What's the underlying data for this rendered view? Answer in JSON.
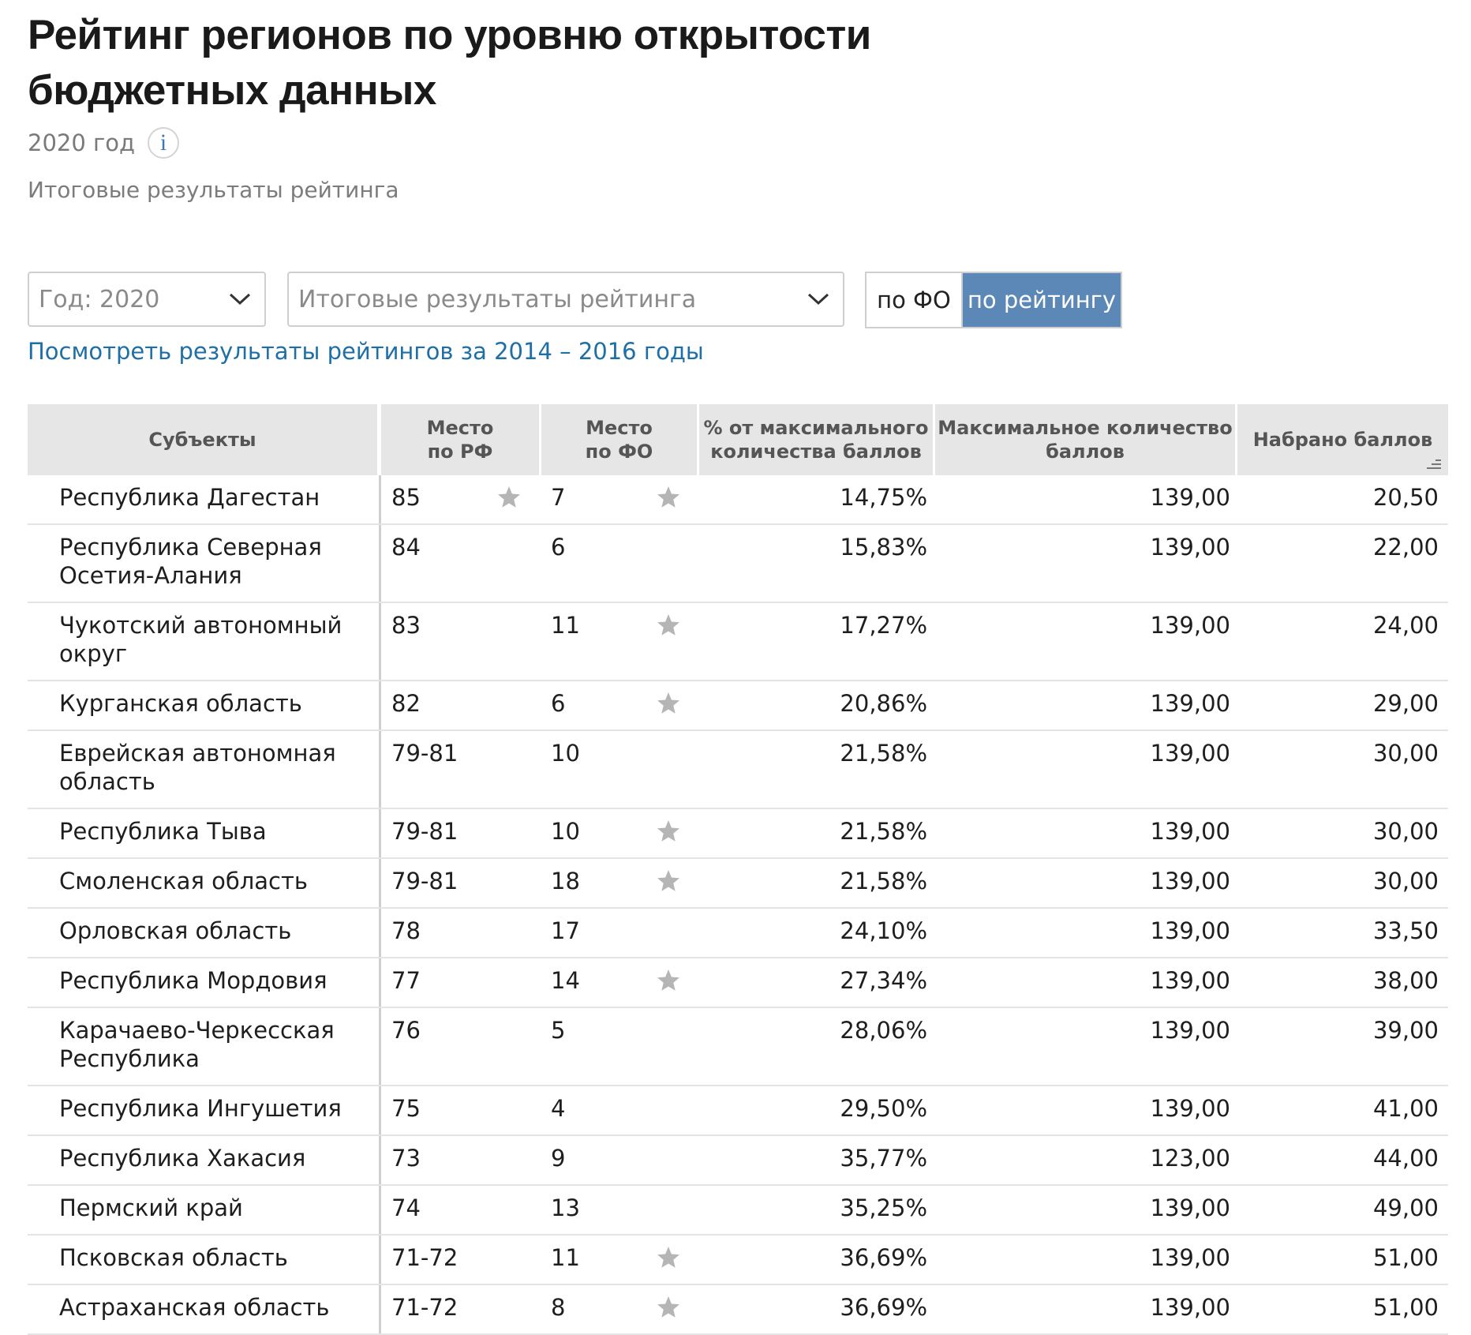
{
  "page": {
    "title_line1": "Рейтинг регионов по уровню открытости",
    "title_line2": "бюджетных данных",
    "year_label": "2020 год",
    "info_symbol": "i",
    "subtitle": "Итоговые результаты рейтинга"
  },
  "filters": {
    "year_select": "Год: 2020",
    "rating_select": "Итоговые результаты рейтинга",
    "toggle_fo": "по ФО",
    "toggle_rating": "по рейтингу",
    "active_toggle": "по рейтингу",
    "link": "Посмотреть результаты рейтингов за 2014 – 2016 годы"
  },
  "table": {
    "headers": {
      "subject": "Субъекты",
      "rf_line1": "Место",
      "rf_line2": "по РФ",
      "fo_line1": "Место",
      "fo_line2": "по ФО",
      "pct_line1": "% от максимального",
      "pct_line2": "количества баллов",
      "max_line1": "Максимальное количество",
      "max_line2": "баллов",
      "score": "Набрано баллов"
    },
    "rows": [
      {
        "name1": "Республика Дагестан",
        "name2": "",
        "rf": "85",
        "rf_star": true,
        "fo": "7",
        "fo_star": true,
        "pct": "14,75%",
        "max": "139,00",
        "score": "20,50"
      },
      {
        "name1": "Республика Северная",
        "name2": "Осетия-Алания",
        "rf": "84",
        "rf_star": false,
        "fo": "6",
        "fo_star": false,
        "pct": "15,83%",
        "max": "139,00",
        "score": "22,00"
      },
      {
        "name1": "Чукотский автономный",
        "name2": "округ",
        "rf": "83",
        "rf_star": false,
        "fo": "11",
        "fo_star": true,
        "pct": "17,27%",
        "max": "139,00",
        "score": "24,00"
      },
      {
        "name1": "Курганская область",
        "name2": "",
        "rf": "82",
        "rf_star": false,
        "fo": "6",
        "fo_star": true,
        "pct": "20,86%",
        "max": "139,00",
        "score": "29,00"
      },
      {
        "name1": "Еврейская автономная",
        "name2": "область",
        "rf": "79-81",
        "rf_star": false,
        "fo": "10",
        "fo_star": false,
        "pct": "21,58%",
        "max": "139,00",
        "score": "30,00"
      },
      {
        "name1": "Республика Тыва",
        "name2": "",
        "rf": "79-81",
        "rf_star": false,
        "fo": "10",
        "fo_star": true,
        "pct": "21,58%",
        "max": "139,00",
        "score": "30,00"
      },
      {
        "name1": "Смоленская область",
        "name2": "",
        "rf": "79-81",
        "rf_star": false,
        "fo": "18",
        "fo_star": true,
        "pct": "21,58%",
        "max": "139,00",
        "score": "30,00"
      },
      {
        "name1": "Орловская область",
        "name2": "",
        "rf": "78",
        "rf_star": false,
        "fo": "17",
        "fo_star": false,
        "pct": "24,10%",
        "max": "139,00",
        "score": "33,50"
      },
      {
        "name1": "Республика Мордовия",
        "name2": "",
        "rf": "77",
        "rf_star": false,
        "fo": "14",
        "fo_star": true,
        "pct": "27,34%",
        "max": "139,00",
        "score": "38,00"
      },
      {
        "name1": "Карачаево-Черкесская",
        "name2": "Республика",
        "rf": "76",
        "rf_star": false,
        "fo": "5",
        "fo_star": false,
        "pct": "28,06%",
        "max": "139,00",
        "score": "39,00"
      },
      {
        "name1": "Республика Ингушетия",
        "name2": "",
        "rf": "75",
        "rf_star": false,
        "fo": "4",
        "fo_star": false,
        "pct": "29,50%",
        "max": "139,00",
        "score": "41,00"
      },
      {
        "name1": "Республика Хакасия",
        "name2": "",
        "rf": "73",
        "rf_star": false,
        "fo": "9",
        "fo_star": false,
        "pct": "35,77%",
        "max": "123,00",
        "score": "44,00"
      },
      {
        "name1": "Пермский край",
        "name2": "",
        "rf": "74",
        "rf_star": false,
        "fo": "13",
        "fo_star": false,
        "pct": "35,25%",
        "max": "139,00",
        "score": "49,00"
      },
      {
        "name1": "Псковская область",
        "name2": "",
        "rf": "71-72",
        "rf_star": false,
        "fo": "11",
        "fo_star": true,
        "pct": "36,69%",
        "max": "139,00",
        "score": "51,00"
      },
      {
        "name1": "Астраханская область",
        "name2": "",
        "rf": "71-72",
        "rf_star": false,
        "fo": "8",
        "fo_star": true,
        "pct": "36,69%",
        "max": "139,00",
        "score": "51,00"
      }
    ]
  },
  "icons": {
    "star": "star-icon",
    "chevron": "chevron-down-icon",
    "sort": "sort-desc-icon",
    "info": "info-icon"
  },
  "colors": {
    "accent": "#5b88b6",
    "link": "#1f6fa7",
    "header_bg": "#e6e6e6",
    "star": "#b5b5b5"
  }
}
